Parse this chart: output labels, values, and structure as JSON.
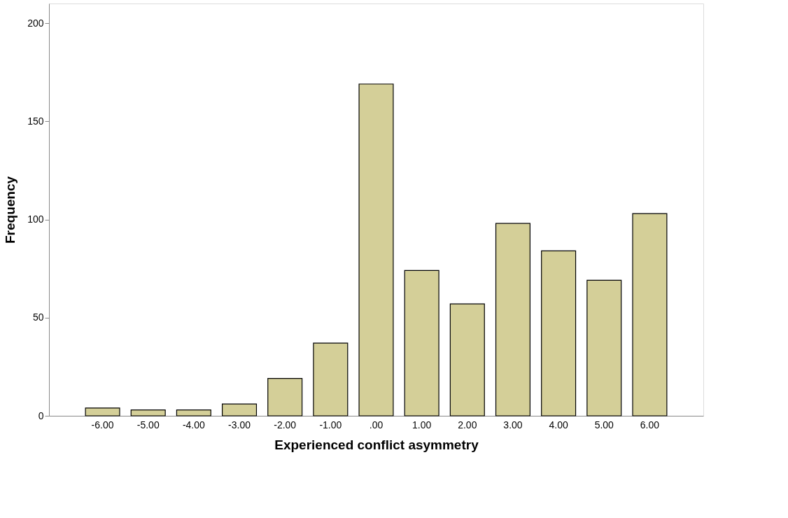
{
  "chart_data": {
    "type": "bar",
    "xlabel": "Experienced conflict asymmetry",
    "ylabel": "Frequency",
    "categories": [
      "-6.00",
      "-5.00",
      "-4.00",
      "-3.00",
      "-2.00",
      "-1.00",
      ".00",
      "1.00",
      "2.00",
      "3.00",
      "4.00",
      "5.00",
      "6.00"
    ],
    "values": [
      4,
      3,
      3,
      6,
      19,
      37,
      169,
      74,
      57,
      98,
      84,
      69,
      103
    ],
    "color": "#d4cf98",
    "ylim": [
      0,
      210
    ],
    "yticks": [
      0,
      50,
      100,
      150,
      200
    ],
    "grid": false
  }
}
